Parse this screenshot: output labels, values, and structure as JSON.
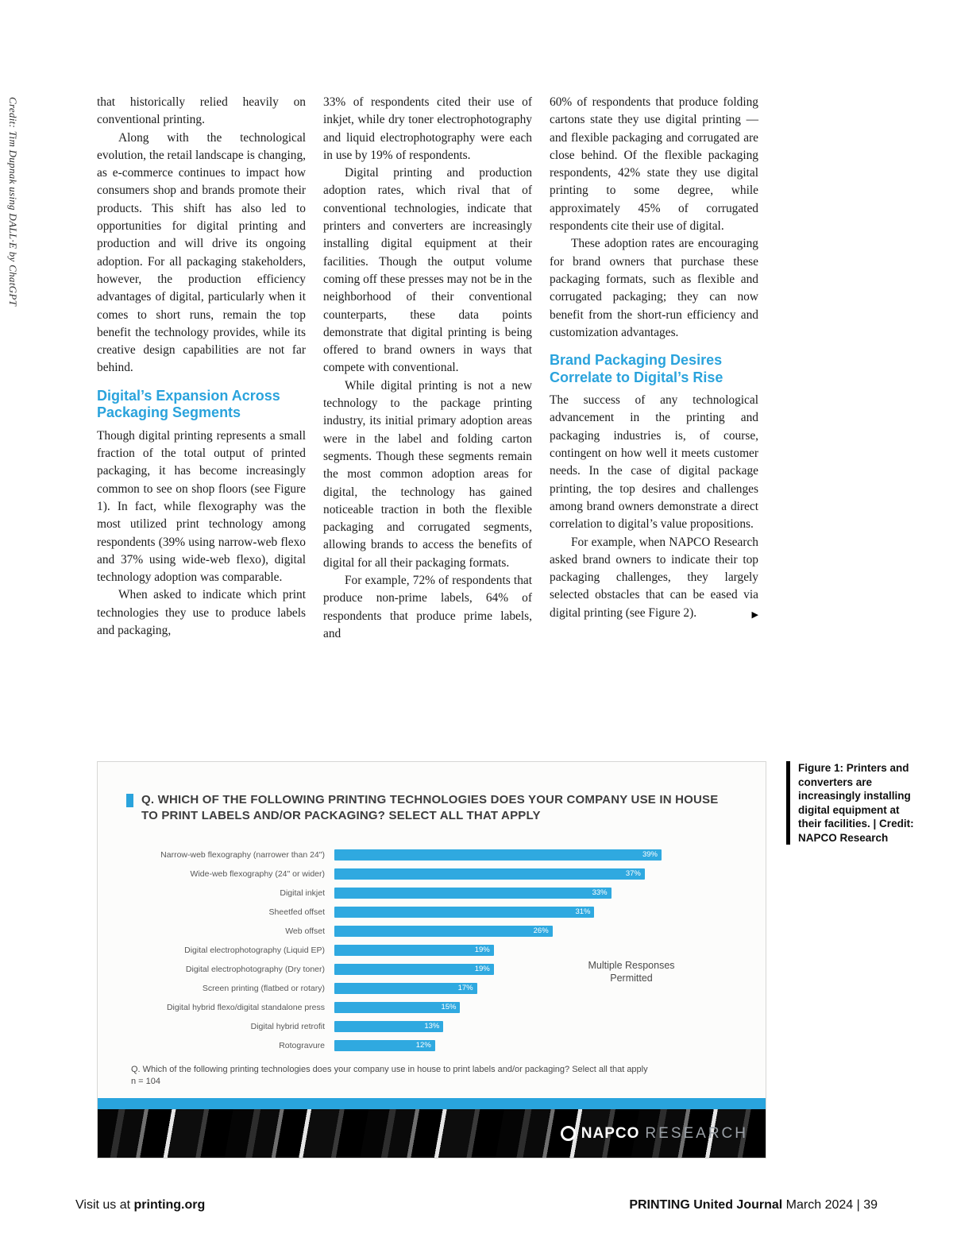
{
  "page": {
    "vertical_credit": "Credit: Tim Dupnak using DALL·E by ChatGPT",
    "footer": {
      "visit_prefix": "Visit us at ",
      "visit_link": "printing.org",
      "journal_name": "PRINTING United Journal",
      "issue": " March 2024 | 39"
    }
  },
  "article": {
    "col1": {
      "p1": "that historically relied heavily on conventional printing.",
      "p2": "Along with the technological evolution, the retail landscape is changing, as e-commerce continues to impact how consumers shop and brands promote their products. This shift has also led to opportunities for digital printing and production and will drive its ongoing adoption. For all packaging stakeholders, however, the production efficiency advantages of digital, particularly when it comes to short runs, remain the top benefit the technology provides, while its creative design capabilities are not far behind.",
      "heading": "Digital’s Expansion Across Packaging Segments",
      "p3": "Though digital printing represents a small fraction of the total output of printed packaging, it has become increasingly common to see on shop floors (see Figure 1). In fact, while flexography was the most utilized print technology among respondents (39% using narrow-web flexo and 37% using wide-web flexo), digital technology adoption was comparable.",
      "p4": "When asked to indicate which print technologies they use to produce labels and packaging,"
    },
    "col2": {
      "p1": "33% of respondents cited their use of inkjet, while dry toner electrophotography and liquid electrophotography were each in use by 19% of respondents.",
      "p2": "Digital printing and production adoption rates, which rival that of conventional technologies, indicate that printers and converters are increasingly installing digital equipment at their facilities. Though the output volume coming off these presses may not be in the neighborhood of their conventional counterparts, these data points demonstrate that digital printing is being offered to brand owners in ways that compete with conventional.",
      "p3": "While digital printing is not a new technology to the package printing industry, its initial primary adoption areas were in the label and folding carton segments. Though these segments remain the most common adoption areas for digital, the technology has gained noticeable traction in both the flexible packaging and corrugated segments, allowing brands to access the benefits of digital for all their packaging formats.",
      "p4": "For example, 72% of respondents that produce non-prime labels, 64% of respondents that produce prime labels, and"
    },
    "col3": {
      "p1": "60% of respondents that produce folding cartons state they use digital printing — and flexible packaging and corrugated are close behind. Of the flexible packaging respondents, 42% state they use digital printing to some degree, while approximately 45% of corrugated respondents cite their use of digital.",
      "p2": "These adoption rates are encouraging for brand owners that purchase these packaging formats, such as flexible and corrugated packaging; they can now benefit from the short-run efficiency and customization advantages.",
      "heading": "Brand Packaging Desires Correlate to Digital’s Rise",
      "p3": "The success of any technological advancement in the printing and packaging industries is, of course, contingent on how well it meets customer needs. In the case of digital package printing, the top desires and challenges among brand owners demonstrate a direct correlation to digital’s value propositions.",
      "p4": "For example, when NAPCO Research asked brand owners to indicate their top packaging challenges, they largely selected obstacles that can be eased via digital printing (see Figure 2).",
      "continuation_arrow": "▶"
    }
  },
  "figure_caption": "Figure 1: Printers and converters are increasingly installing digital equipment at their facilities. | Credit: NAPCO Research",
  "chart_data": {
    "type": "bar",
    "orientation": "horizontal",
    "title": "Q. WHICH OF THE FOLLOWING PRINTING TECHNOLOGIES DOES YOUR COMPANY USE IN HOUSE TO PRINT LABELS AND/OR PACKAGING? SELECT ALL THAT APPLY",
    "categories": [
      "Narrow-web flexography (narrower than 24\")",
      "Wide-web flexography (24\" or wider)",
      "Digital inkjet",
      "Sheetfed offset",
      "Web offset",
      "Digital electrophotography (Liquid EP)",
      "Digital electrophotography (Dry toner)",
      "Screen printing (flatbed or rotary)",
      "Digital hybrid flexo/digital standalone press",
      "Digital hybrid retrofit",
      "Rotogravure"
    ],
    "values": [
      39,
      37,
      33,
      31,
      26,
      19,
      19,
      17,
      15,
      13,
      12
    ],
    "unit": "%",
    "xlim": [
      0,
      40
    ],
    "bar_color": "#2fa9e0",
    "annotation": "Multiple Responses Permitted",
    "footnote": "Q. Which of the following printing technologies does your company use in house to print labels and/or packaging? Select all that apply",
    "sample": "n = 104",
    "brand": {
      "napco": "NAPCO",
      "research": "RESEARCH"
    }
  }
}
